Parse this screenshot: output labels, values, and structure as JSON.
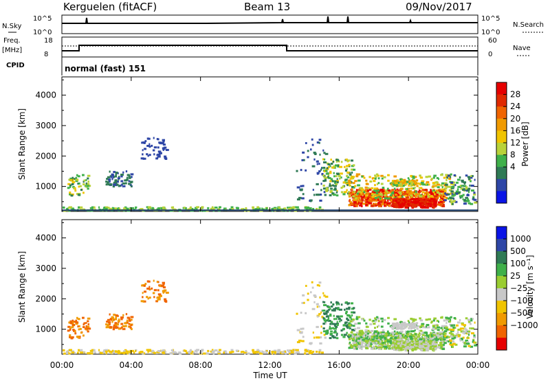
{
  "header": {
    "station": "Kerguelen (fitACF)",
    "beam": "Beam 13",
    "date": "09/Nov/2017"
  },
  "top_panels": {
    "nsky": {
      "label": "N.Sky",
      "right_label": "N.Search",
      "tick_top": "10^5",
      "tick_bottom": "10^0"
    },
    "freq": {
      "label_line1": "Freq.",
      "label_line2": "[MHz]",
      "tick_top": "18",
      "tick_bottom": "8",
      "right_label": "Nave",
      "right_tick_top": "60",
      "right_tick_bottom": "0"
    },
    "cpid": {
      "label": "CPID",
      "value": "normal (fast) 151"
    }
  },
  "colors": {
    "power_scale": [
      "#0a14e6",
      "#2e46a6",
      "#2f7a55",
      "#3fb04a",
      "#b9d23a",
      "#f0c400",
      "#f09a00",
      "#f06400",
      "#e02a00",
      "#e60000"
    ],
    "velocity_scale": [
      "#e60000",
      "#f06400",
      "#f09a00",
      "#f0c400",
      "#c8c8c8",
      "#9acd32",
      "#3fb04a",
      "#2f7a55",
      "#2e46a6",
      "#0a14e6"
    ]
  },
  "chart_data": [
    {
      "type": "heatmap",
      "name": "power",
      "ylabel": "Slant Range [km]",
      "ylim": [
        180,
        4600
      ],
      "yticks": [
        "1000",
        "2000",
        "3000",
        "4000"
      ],
      "ytick_values": [
        1000,
        2000,
        3000,
        4000
      ],
      "colorbar": {
        "label": "Power [dB]",
        "ticks": [
          "4",
          "8",
          "12",
          "16",
          "20",
          "24",
          "28"
        ],
        "tick_values": [
          4,
          8,
          12,
          16,
          20,
          24,
          28
        ]
      }
    },
    {
      "type": "heatmap",
      "name": "velocity",
      "ylabel": "Slant Range [km]",
      "ylim": [
        180,
        4600
      ],
      "yticks": [
        "1000",
        "2000",
        "3000",
        "4000"
      ],
      "ytick_values": [
        1000,
        2000,
        3000,
        4000
      ],
      "colorbar": {
        "label": "Velocity [m s⁻¹]",
        "ticks": [
          "1000",
          "500",
          "100",
          "25",
          "−25",
          "−100",
          "−500",
          "−1000"
        ]
      },
      "xlabel": "Time UT",
      "xticks": [
        "00:00",
        "04:00",
        "08:00",
        "12:00",
        "16:00",
        "20:00",
        "00:00"
      ]
    }
  ]
}
